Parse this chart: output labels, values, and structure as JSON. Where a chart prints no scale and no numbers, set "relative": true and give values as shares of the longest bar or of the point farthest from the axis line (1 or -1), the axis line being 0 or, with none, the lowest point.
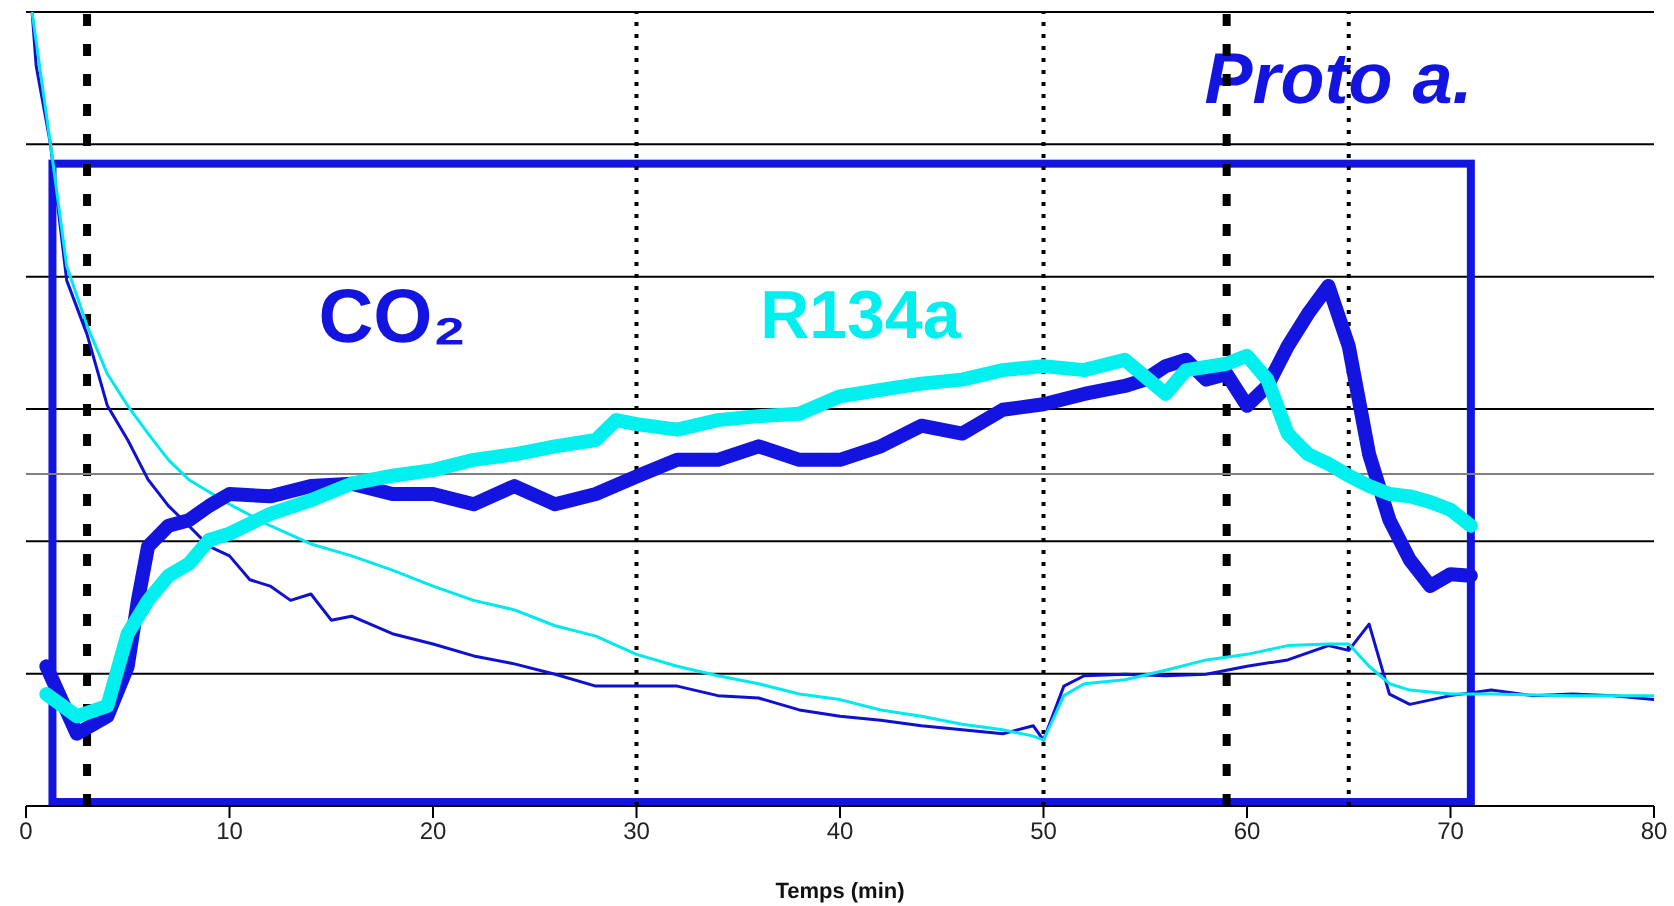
{
  "chart_data": {
    "type": "line",
    "relative": true,
    "xlabel": "Temps (min)",
    "xlim": [
      0,
      80
    ],
    "xticks": [
      0,
      10,
      20,
      30,
      40,
      50,
      60,
      70,
      80
    ],
    "grid": "y",
    "marker": "none",
    "annotations": [
      "Proto a."
    ],
    "ref_lines": [
      {
        "axis": "x",
        "value": 3,
        "color": "#000000",
        "line_style": "dashed"
      },
      {
        "axis": "x",
        "value": 59,
        "color": "#000000",
        "line_style": "dashed"
      },
      {
        "axis": "x",
        "value": 30,
        "color": "#000000",
        "line_style": "dotted"
      },
      {
        "axis": "x",
        "value": 50,
        "color": "#000000",
        "line_style": "dotted"
      },
      {
        "axis": "x",
        "value": 65,
        "color": "#000000",
        "line_style": "dotted"
      },
      {
        "axis": "y",
        "value": 0.418,
        "color": "#808080",
        "line_style": "solid"
      }
    ],
    "series": [
      {
        "name": "CO₂",
        "color": "#1414e0",
        "x": [
          1,
          2.5,
          4,
          5,
          5.5,
          6,
          7,
          8,
          9,
          10,
          12,
          14,
          16,
          18,
          20,
          22,
          24,
          26,
          28,
          30,
          32,
          34,
          36,
          38,
          40,
          42,
          44,
          46,
          48,
          50,
          52,
          54,
          55,
          56,
          57,
          58,
          59,
          60,
          61,
          62,
          63,
          64,
          65,
          66,
          67,
          68,
          69,
          70,
          71
        ],
        "values": [
          0.176,
          0.091,
          0.113,
          0.176,
          0.259,
          0.327,
          0.353,
          0.36,
          0.378,
          0.393,
          0.39,
          0.403,
          0.406,
          0.393,
          0.393,
          0.38,
          0.403,
          0.38,
          0.393,
          0.415,
          0.436,
          0.436,
          0.453,
          0.436,
          0.436,
          0.453,
          0.479,
          0.469,
          0.499,
          0.506,
          0.519,
          0.529,
          0.537,
          0.554,
          0.562,
          0.537,
          0.544,
          0.504,
          0.529,
          0.579,
          0.62,
          0.655,
          0.579,
          0.443,
          0.36,
          0.31,
          0.277,
          0.292,
          0.29
        ]
      },
      {
        "name": "R134a",
        "color": "#00f0f0",
        "x": [
          1,
          2.5,
          4,
          5,
          6,
          7,
          8,
          9,
          10,
          12,
          14,
          16,
          18,
          20,
          22,
          24,
          26,
          28,
          29,
          30,
          32,
          34,
          36,
          38,
          40,
          42,
          44,
          46,
          48,
          50,
          52,
          54,
          56,
          57,
          59,
          60,
          61,
          62,
          63,
          64,
          65,
          66,
          67,
          68,
          69,
          70,
          71
        ],
        "values": [
          0.141,
          0.113,
          0.126,
          0.217,
          0.259,
          0.29,
          0.305,
          0.335,
          0.343,
          0.368,
          0.385,
          0.406,
          0.416,
          0.423,
          0.436,
          0.443,
          0.453,
          0.461,
          0.486,
          0.481,
          0.474,
          0.486,
          0.491,
          0.494,
          0.516,
          0.524,
          0.532,
          0.537,
          0.549,
          0.554,
          0.549,
          0.562,
          0.519,
          0.549,
          0.557,
          0.567,
          0.537,
          0.469,
          0.443,
          0.431,
          0.416,
          0.403,
          0.393,
          0.39,
          0.383,
          0.373,
          0.353
        ]
      },
      {
        "color": "#1010d0",
        "x": [
          0.3,
          0.5,
          1.2,
          2,
          3,
          4,
          5,
          6,
          7,
          8,
          9,
          10,
          11,
          12,
          13,
          14,
          15,
          16,
          18,
          20,
          22,
          24,
          26,
          28,
          30,
          32,
          34,
          36,
          38,
          40,
          42,
          44,
          46,
          48,
          49.5,
          50,
          51,
          52,
          54,
          56,
          58,
          60,
          62,
          64,
          65,
          66,
          67,
          68,
          70,
          72,
          74,
          76,
          78,
          80
        ],
        "values": [
          1,
          0.932,
          0.834,
          0.662,
          0.594,
          0.504,
          0.461,
          0.411,
          0.378,
          0.353,
          0.327,
          0.315,
          0.285,
          0.277,
          0.259,
          0.267,
          0.234,
          0.239,
          0.217,
          0.204,
          0.189,
          0.179,
          0.166,
          0.151,
          0.151,
          0.151,
          0.139,
          0.136,
          0.121,
          0.113,
          0.108,
          0.101,
          0.096,
          0.091,
          0.101,
          0.083,
          0.151,
          0.164,
          0.166,
          0.164,
          0.166,
          0.176,
          0.184,
          0.202,
          0.196,
          0.229,
          0.141,
          0.128,
          0.139,
          0.146,
          0.139,
          0.141,
          0.139,
          0.134
        ]
      },
      {
        "color": "#00e8f0",
        "x": [
          0.3,
          1.2,
          2,
          3,
          4,
          5,
          6,
          7,
          8,
          10,
          12,
          14,
          16,
          18,
          20,
          22,
          24,
          26,
          28,
          30,
          32,
          34,
          36,
          38,
          40,
          42,
          44,
          46,
          48,
          49.5,
          50,
          51,
          52,
          54,
          56,
          58,
          60,
          62,
          64,
          65,
          66,
          67,
          68,
          70,
          72,
          76,
          80
        ],
        "values": [
          1,
          0.834,
          0.68,
          0.605,
          0.544,
          0.504,
          0.469,
          0.436,
          0.411,
          0.38,
          0.353,
          0.33,
          0.315,
          0.297,
          0.277,
          0.259,
          0.247,
          0.227,
          0.214,
          0.191,
          0.176,
          0.164,
          0.154,
          0.141,
          0.134,
          0.121,
          0.113,
          0.103,
          0.096,
          0.088,
          0.083,
          0.139,
          0.154,
          0.159,
          0.171,
          0.184,
          0.191,
          0.202,
          0.204,
          0.204,
          0.176,
          0.154,
          0.146,
          0.141,
          0.141,
          0.139,
          0.139
        ]
      }
    ]
  }
}
